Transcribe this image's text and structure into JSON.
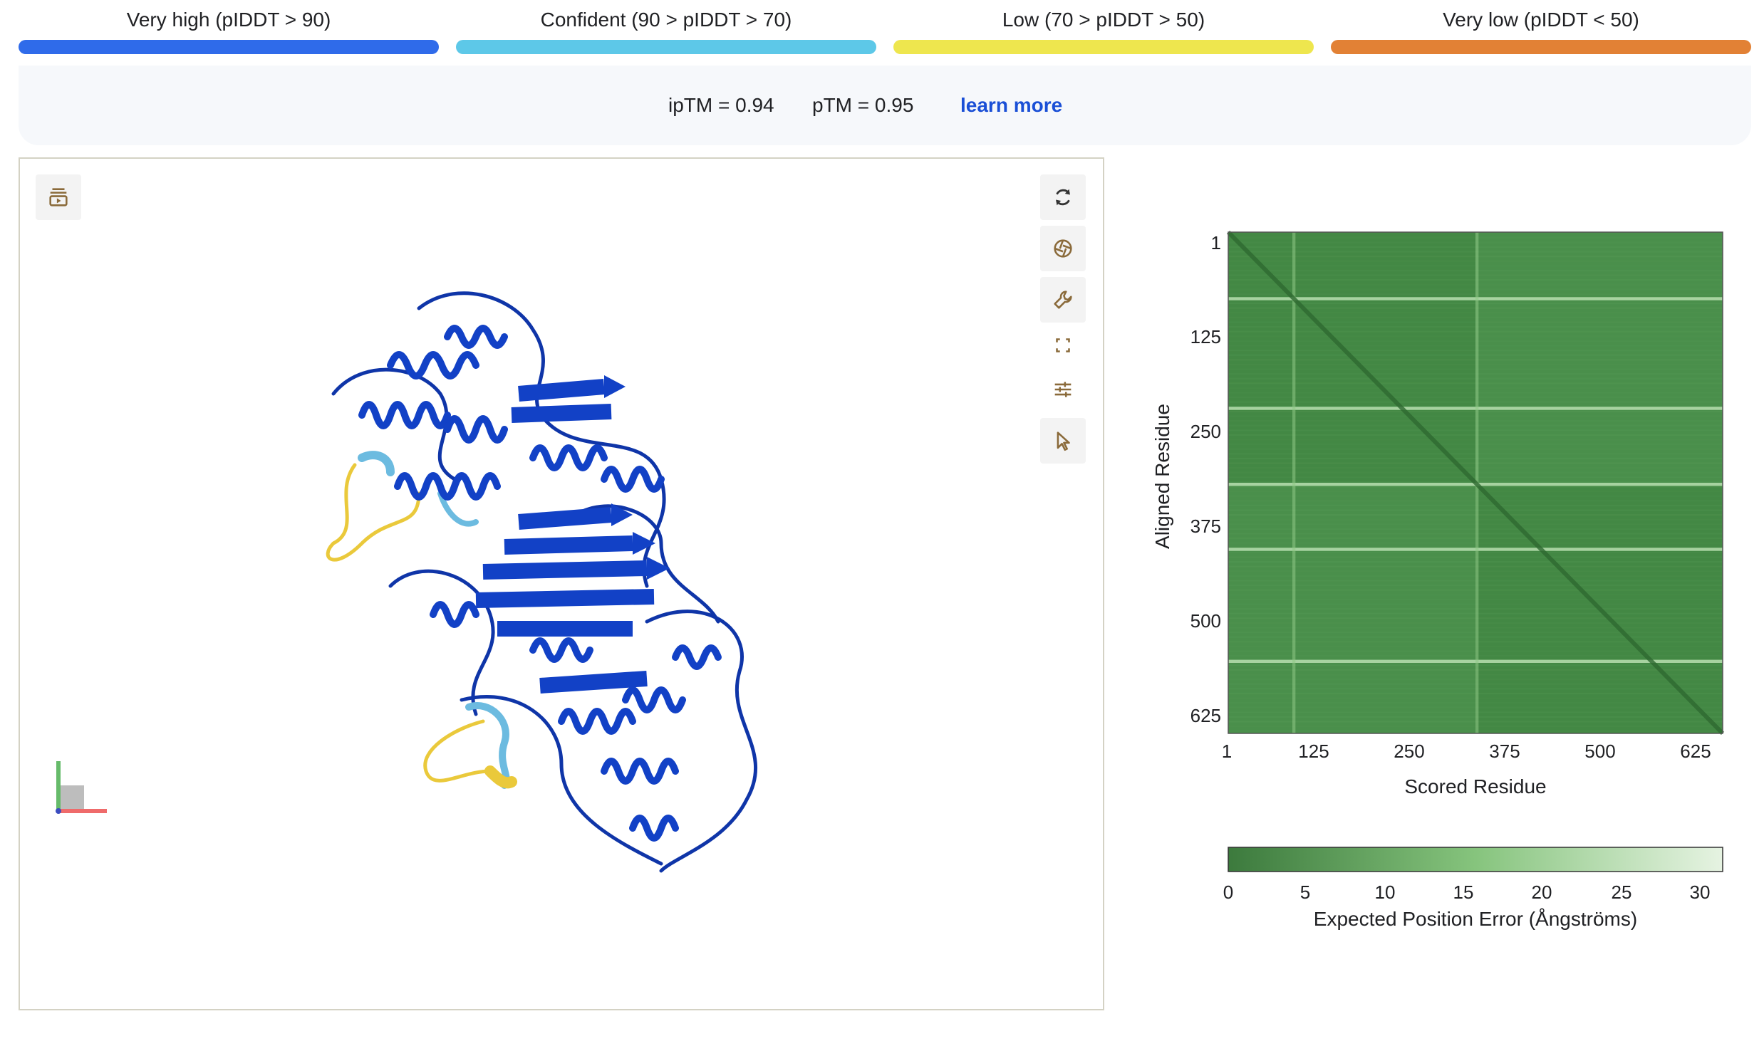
{
  "legend": [
    {
      "label": "Very high (pIDDT > 90)",
      "color": "#2f6bea"
    },
    {
      "label": "Confident (90 > pIDDT > 70)",
      "color": "#5dc8e8"
    },
    {
      "label": "Low (70 > pIDDT > 50)",
      "color": "#eee64e"
    },
    {
      "label": "Very low (pIDDT < 50)",
      "color": "#e28135"
    }
  ],
  "scores": {
    "iptm": "ipTM = 0.94",
    "ptm": "pTM = 0.95",
    "learn_more": "learn more"
  },
  "viewer": {
    "toolbar": [
      {
        "icon": "reset-view-icon"
      },
      {
        "icon": "screenshot-icon"
      },
      {
        "icon": "wrench-icon"
      },
      {
        "icon": "fullscreen-icon"
      },
      {
        "icon": "settings-sliders-icon"
      },
      {
        "icon": "cursor-icon"
      }
    ],
    "structure_color": "#1241c6"
  },
  "chart_data": {
    "type": "heatmap",
    "title": "",
    "xlabel": "Scored Residue",
    "ylabel": "Aligned Residue",
    "x_ticks": [
      "1",
      "125",
      "250",
      "375",
      "500",
      "625"
    ],
    "y_ticks": [
      "1",
      "125",
      "250",
      "375",
      "500",
      "625"
    ],
    "range": [
      1,
      640
    ],
    "colorbar": {
      "label": "Expected Position Error (Ångströms)",
      "ticks": [
        "0",
        "5",
        "10",
        "15",
        "20",
        "25",
        "30"
      ],
      "min_color": "#3c7a3d",
      "max_color": "#e6f3e2"
    },
    "domain_boundary": 320,
    "bright_bands": [
      85,
      225,
      322,
      405,
      548
    ],
    "bright_columns": [
      85,
      322
    ]
  }
}
